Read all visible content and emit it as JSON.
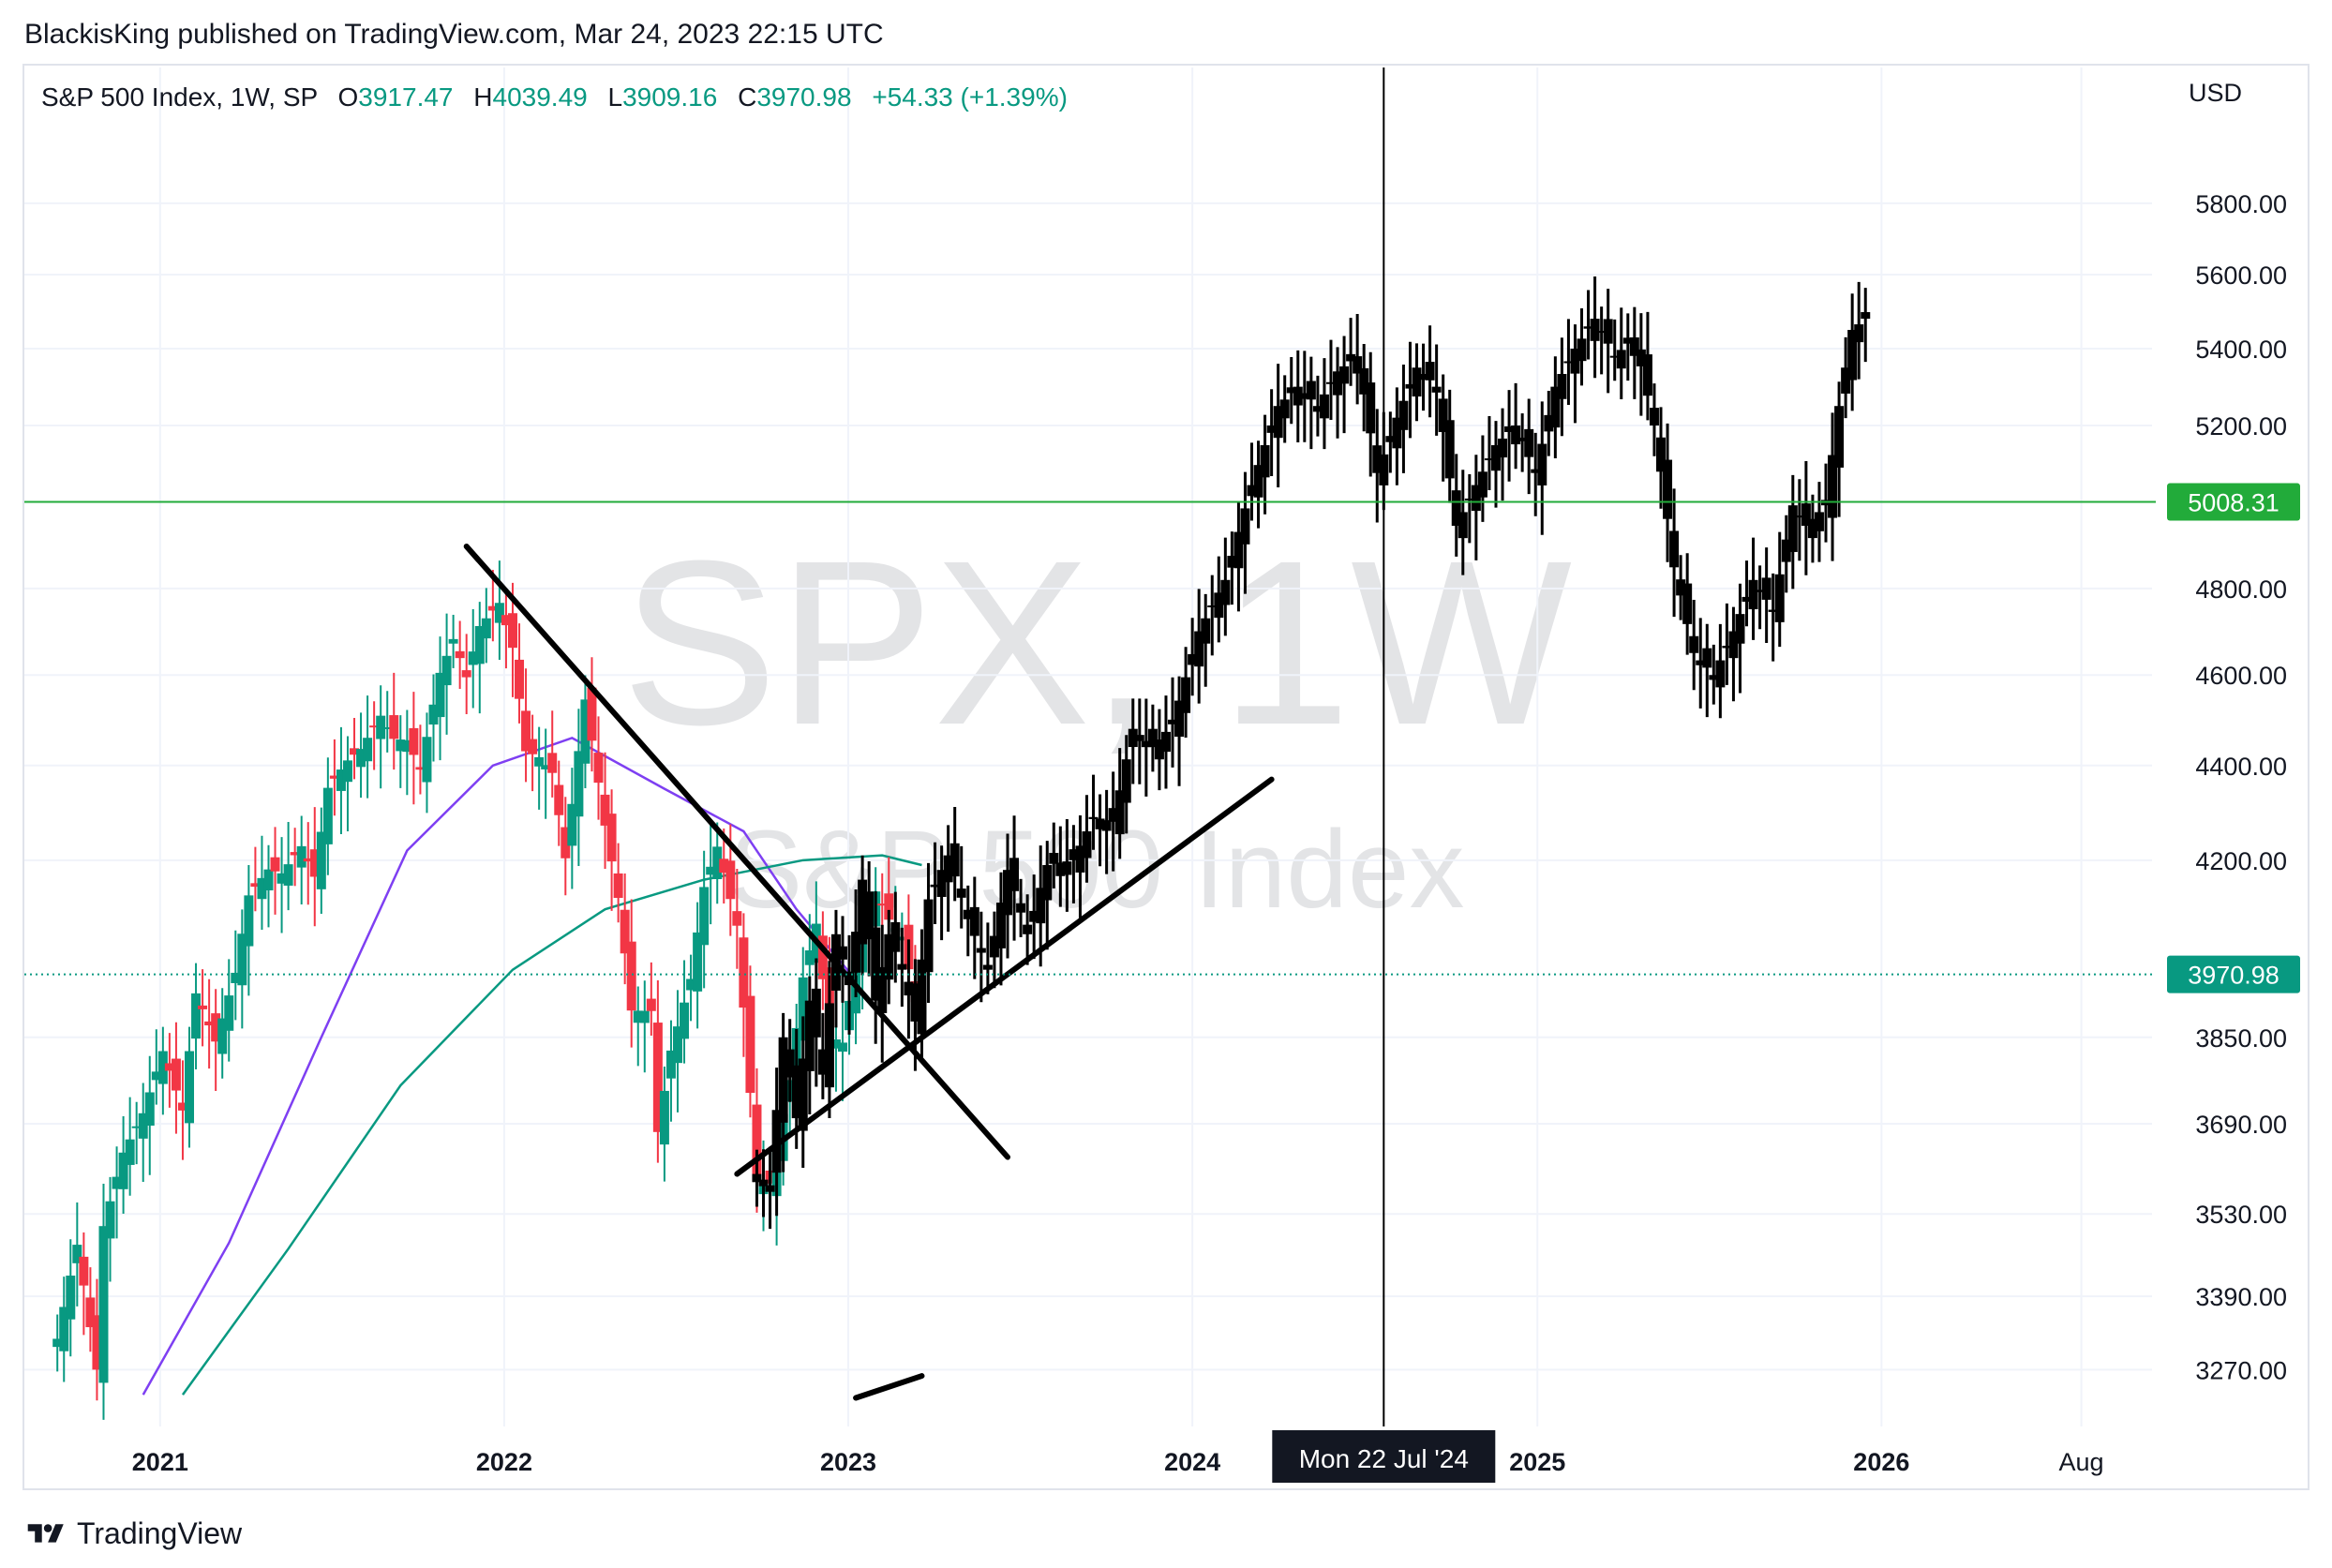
{
  "publisher_line": "BlackisKing published on TradingView.com, Mar 24, 2023 22:15 UTC",
  "footer": {
    "brand": "TradingView",
    "logo_icon": "tradingview-logo-icon"
  },
  "legend": {
    "symbol": "S&P 500 Index, 1W, SP",
    "open_label": "O",
    "open": "3917.47",
    "high_label": "H",
    "high": "4039.49",
    "low_label": "L",
    "low": "3909.16",
    "close_label": "C",
    "close": "3970.98",
    "change": "+54.33 (+1.39%)"
  },
  "watermark": {
    "ticker": "SPX, 1W",
    "name": "S&P 500 Index"
  },
  "colors": {
    "up": "#089981",
    "down": "#f23645",
    "projection": "#000000",
    "ma_fast": "#7e3ff2",
    "ma_slow": "#089981",
    "hline": "#22ab3a",
    "price_line": "#089981",
    "crosshair": "#000000"
  },
  "chart_data": {
    "type": "candlestick",
    "interval": "1W",
    "currency": "USD",
    "y_scale": "log",
    "ylim": [
      3180,
      6200
    ],
    "y_ticks": [
      "5800.00",
      "5600.00",
      "5400.00",
      "5200.00",
      "4800.00",
      "4600.00",
      "4400.00",
      "4200.00",
      "3850.00",
      "3690.00",
      "3530.00",
      "3390.00",
      "3270.00"
    ],
    "x_ticks": [
      "2021",
      "2022",
      "2023",
      "2024",
      "2025",
      "2026",
      "Aug"
    ],
    "x_tick_dates": [
      "2021-01-01",
      "2022-01-01",
      "2023-01-01",
      "2024-01-01",
      "2025-01-01",
      "2026-01-01",
      "2026-08-01"
    ],
    "xlim_dates": [
      "2020-08-10",
      "2026-10-15"
    ],
    "last_price_label": "3970.98",
    "horizontal_line": {
      "value": 5008.31,
      "label": "5008.31"
    },
    "crosshair": {
      "date": "2024-07-22",
      "label": "Mon 22 Jul '24"
    },
    "actual_weekly_close": [
      [
        "2020-09-14",
        3320
      ],
      [
        "2020-10-05",
        3477
      ],
      [
        "2020-10-26",
        3270
      ],
      [
        "2020-11-02",
        3509
      ],
      [
        "2020-11-23",
        3638
      ],
      [
        "2020-12-14",
        3709
      ],
      [
        "2021-01-04",
        3824
      ],
      [
        "2021-01-25",
        3714
      ],
      [
        "2021-02-08",
        3934
      ],
      [
        "2021-03-01",
        3842
      ],
      [
        "2021-03-22",
        3974
      ],
      [
        "2021-04-05",
        4128
      ],
      [
        "2021-04-26",
        4181
      ],
      [
        "2021-05-10",
        4173
      ],
      [
        "2021-05-31",
        4229
      ],
      [
        "2021-06-14",
        4166
      ],
      [
        "2021-06-28",
        4352
      ],
      [
        "2021-07-19",
        4411
      ],
      [
        "2021-08-02",
        4436
      ],
      [
        "2021-08-23",
        4509
      ],
      [
        "2021-09-06",
        4458
      ],
      [
        "2021-09-20",
        4455
      ],
      [
        "2021-10-04",
        4391
      ],
      [
        "2021-10-25",
        4605
      ],
      [
        "2021-11-08",
        4682
      ],
      [
        "2021-11-22",
        4595
      ],
      [
        "2021-12-06",
        4712
      ],
      [
        "2021-12-27",
        4766
      ],
      [
        "2022-01-10",
        4662
      ],
      [
        "2022-01-24",
        4431
      ],
      [
        "2022-02-07",
        4418
      ],
      [
        "2022-02-21",
        4384
      ],
      [
        "2022-03-07",
        4204
      ],
      [
        "2022-03-28",
        4545
      ],
      [
        "2022-04-18",
        4272
      ],
      [
        "2022-05-02",
        4123
      ],
      [
        "2022-05-16",
        3901
      ],
      [
        "2022-06-06",
        3900
      ],
      [
        "2022-06-13",
        3675
      ],
      [
        "2022-06-27",
        3825
      ],
      [
        "2022-07-18",
        3962
      ],
      [
        "2022-08-01",
        4145
      ],
      [
        "2022-08-15",
        4228
      ],
      [
        "2022-09-05",
        4067
      ],
      [
        "2022-09-26",
        3586
      ],
      [
        "2022-10-10",
        3583
      ],
      [
        "2022-10-31",
        3770
      ],
      [
        "2022-11-14",
        3965
      ],
      [
        "2022-11-28",
        4071
      ],
      [
        "2022-12-12",
        3852
      ],
      [
        "2022-12-26",
        3840
      ],
      [
        "2023-01-09",
        3999
      ],
      [
        "2023-01-30",
        4136
      ],
      [
        "2023-02-13",
        4079
      ],
      [
        "2023-02-27",
        4045
      ],
      [
        "2023-03-13",
        3917
      ],
      [
        "2023-03-20",
        3971
      ]
    ],
    "projection_weekly_close": [
      [
        "2022-09-26",
        3600
      ],
      [
        "2022-10-10",
        3580
      ],
      [
        "2022-10-24",
        3850
      ],
      [
        "2022-11-07",
        3700
      ],
      [
        "2022-11-21",
        3920
      ],
      [
        "2022-12-05",
        3780
      ],
      [
        "2022-12-19",
        4050
      ],
      [
        "2023-01-02",
        3950
      ],
      [
        "2023-01-16",
        4160
      ],
      [
        "2023-01-30",
        3920
      ],
      [
        "2023-02-13",
        4050
      ],
      [
        "2023-02-27",
        3980
      ],
      [
        "2023-03-13",
        3880
      ],
      [
        "2023-03-27",
        4120
      ],
      [
        "2023-04-17",
        4210
      ],
      [
        "2023-05-08",
        4080
      ],
      [
        "2023-05-29",
        3980
      ],
      [
        "2023-06-19",
        4180
      ],
      [
        "2023-07-10",
        4050
      ],
      [
        "2023-07-31",
        4190
      ],
      [
        "2023-08-28",
        4200
      ],
      [
        "2023-09-18",
        4290
      ],
      [
        "2023-10-09",
        4280
      ],
      [
        "2023-10-30",
        4480
      ],
      [
        "2023-11-20",
        4440
      ],
      [
        "2023-12-11",
        4490
      ],
      [
        "2024-01-08",
        4700
      ],
      [
        "2024-02-05",
        4820
      ],
      [
        "2024-03-04",
        5050
      ],
      [
        "2024-04-01",
        5250
      ],
      [
        "2024-04-22",
        5300
      ],
      [
        "2024-05-13",
        5250
      ],
      [
        "2024-06-03",
        5340
      ],
      [
        "2024-06-24",
        5380
      ],
      [
        "2024-07-15",
        5080
      ],
      [
        "2024-08-05",
        5220
      ],
      [
        "2024-08-26",
        5350
      ],
      [
        "2024-09-16",
        5300
      ],
      [
        "2024-10-07",
        4950
      ],
      [
        "2024-10-28",
        5050
      ],
      [
        "2024-11-18",
        5150
      ],
      [
        "2024-12-09",
        5200
      ],
      [
        "2024-12-30",
        5080
      ],
      [
        "2025-01-20",
        5300
      ],
      [
        "2025-02-10",
        5400
      ],
      [
        "2025-03-03",
        5480
      ],
      [
        "2025-03-24",
        5380
      ],
      [
        "2025-04-14",
        5430
      ],
      [
        "2025-05-05",
        5200
      ],
      [
        "2025-05-26",
        4850
      ],
      [
        "2025-06-16",
        4650
      ],
      [
        "2025-07-07",
        4600
      ],
      [
        "2025-07-28",
        4700
      ],
      [
        "2025-08-18",
        4820
      ],
      [
        "2025-09-08",
        4750
      ],
      [
        "2025-09-29",
        5000
      ],
      [
        "2025-10-13",
        4950
      ],
      [
        "2025-11-03",
        5000
      ],
      [
        "2025-11-17",
        5250
      ],
      [
        "2025-12-01",
        5450
      ],
      [
        "2025-12-15",
        5480
      ]
    ],
    "drawn_trendlines": [
      {
        "from": [
          "2021-11-22",
          4900
        ],
        "to": [
          "2023-06-19",
          3630
        ]
      },
      {
        "from": [
          "2022-09-05",
          3600
        ],
        "to": [
          "2024-03-25",
          4370
        ]
      },
      {
        "from": [
          "2023-01-09",
          3225
        ],
        "to": [
          "2023-03-20",
          3260
        ]
      }
    ],
    "moving_averages": [
      {
        "color": "#7e3ff2",
        "points": [
          [
            "2020-12-14",
            3230
          ],
          [
            "2021-03-15",
            3480
          ],
          [
            "2021-06-21",
            3850
          ],
          [
            "2021-09-20",
            4220
          ],
          [
            "2021-12-20",
            4400
          ],
          [
            "2022-03-14",
            4460
          ],
          [
            "2022-06-20",
            4350
          ],
          [
            "2022-09-12",
            4260
          ],
          [
            "2022-11-07",
            4100
          ],
          [
            "2023-01-09",
            3960
          ]
        ]
      },
      {
        "color": "#089981",
        "points": [
          [
            "2021-01-25",
            3230
          ],
          [
            "2021-05-17",
            3470
          ],
          [
            "2021-09-13",
            3760
          ],
          [
            "2022-01-10",
            3980
          ],
          [
            "2022-04-18",
            4100
          ],
          [
            "2022-08-01",
            4160
          ],
          [
            "2022-11-14",
            4200
          ],
          [
            "2023-02-06",
            4210
          ],
          [
            "2023-03-20",
            4190
          ]
        ]
      }
    ]
  }
}
